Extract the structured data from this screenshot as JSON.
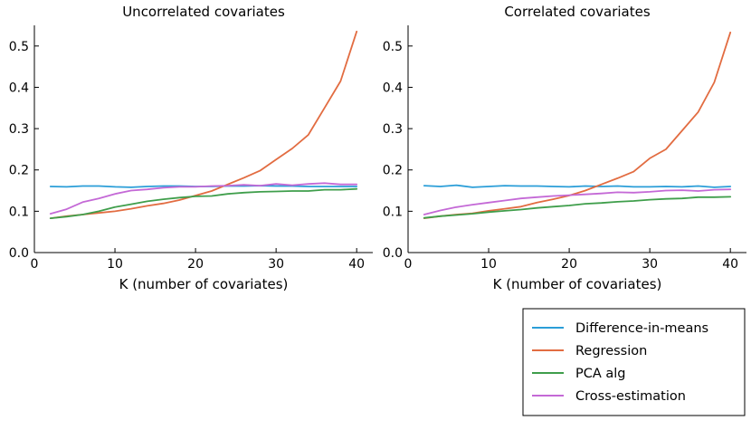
{
  "chart_data": [
    {
      "type": "line",
      "title": "Uncorrelated covariates",
      "xlabel": "K (number of covariates)",
      "ylabel": "",
      "xlim": [
        0,
        42
      ],
      "ylim": [
        0,
        0.55
      ],
      "xticks": [
        "0",
        "10",
        "20",
        "30",
        "40"
      ],
      "yticks": [
        "0.0",
        "0.1",
        "0.2",
        "0.3",
        "0.4",
        "0.5"
      ],
      "x": [
        2,
        4,
        6,
        8,
        10,
        12,
        14,
        16,
        18,
        20,
        22,
        24,
        26,
        28,
        30,
        32,
        34,
        36,
        38,
        40
      ],
      "series": [
        {
          "name": "Difference-in-means",
          "color": "#2b9ed8",
          "values": [
            0.16,
            0.159,
            0.161,
            0.161,
            0.159,
            0.158,
            0.16,
            0.161,
            0.161,
            0.16,
            0.16,
            0.161,
            0.161,
            0.162,
            0.161,
            0.161,
            0.16,
            0.16,
            0.16,
            0.16
          ]
        },
        {
          "name": "Regression",
          "color": "#e26c41",
          "values": [
            0.083,
            0.088,
            0.092,
            0.096,
            0.1,
            0.106,
            0.113,
            0.119,
            0.127,
            0.138,
            0.149,
            0.165,
            0.181,
            0.198,
            0.225,
            0.252,
            0.285,
            0.35,
            0.415,
            0.535
          ]
        },
        {
          "name": "PCA alg",
          "color": "#3f9e4b",
          "values": [
            0.083,
            0.087,
            0.092,
            0.1,
            0.11,
            0.117,
            0.124,
            0.129,
            0.133,
            0.136,
            0.137,
            0.142,
            0.145,
            0.147,
            0.148,
            0.149,
            0.149,
            0.152,
            0.152,
            0.154
          ]
        },
        {
          "name": "Cross-estimation",
          "color": "#c469d6",
          "values": [
            0.094,
            0.105,
            0.122,
            0.131,
            0.142,
            0.15,
            0.153,
            0.157,
            0.159,
            0.159,
            0.161,
            0.162,
            0.164,
            0.162,
            0.166,
            0.163,
            0.166,
            0.168,
            0.165,
            0.165
          ]
        }
      ]
    },
    {
      "type": "line",
      "title": "Correlated covariates",
      "xlabel": "K (number of covariates)",
      "ylabel": "",
      "xlim": [
        0,
        42
      ],
      "ylim": [
        0,
        0.55
      ],
      "xticks": [
        "0",
        "10",
        "20",
        "30",
        "40"
      ],
      "yticks": [
        "0.0",
        "0.1",
        "0.2",
        "0.3",
        "0.4",
        "0.5"
      ],
      "x": [
        2,
        4,
        6,
        8,
        10,
        12,
        14,
        16,
        18,
        20,
        22,
        24,
        26,
        28,
        30,
        32,
        34,
        36,
        38,
        40
      ],
      "series": [
        {
          "name": "Difference-in-means",
          "color": "#2b9ed8",
          "values": [
            0.162,
            0.16,
            0.163,
            0.158,
            0.16,
            0.162,
            0.161,
            0.161,
            0.16,
            0.159,
            0.161,
            0.16,
            0.161,
            0.159,
            0.159,
            0.16,
            0.159,
            0.161,
            0.158,
            0.16
          ]
        },
        {
          "name": "Regression",
          "color": "#e26c41",
          "values": [
            0.083,
            0.088,
            0.092,
            0.095,
            0.101,
            0.106,
            0.111,
            0.121,
            0.129,
            0.138,
            0.15,
            0.165,
            0.18,
            0.196,
            0.228,
            0.25,
            0.295,
            0.34,
            0.412,
            0.533
          ]
        },
        {
          "name": "PCA alg",
          "color": "#3f9e4b",
          "values": [
            0.084,
            0.088,
            0.091,
            0.094,
            0.098,
            0.101,
            0.104,
            0.108,
            0.111,
            0.114,
            0.118,
            0.12,
            0.123,
            0.125,
            0.128,
            0.13,
            0.131,
            0.134,
            0.134,
            0.135
          ]
        },
        {
          "name": "Cross-estimation",
          "color": "#c469d6",
          "values": [
            0.092,
            0.102,
            0.11,
            0.116,
            0.121,
            0.126,
            0.131,
            0.134,
            0.137,
            0.139,
            0.141,
            0.143,
            0.146,
            0.145,
            0.147,
            0.15,
            0.151,
            0.149,
            0.152,
            0.153
          ]
        }
      ]
    }
  ],
  "legend": {
    "entries": [
      "Difference-in-means",
      "Regression",
      "PCA alg",
      "Cross-estimation"
    ],
    "placement": "bottom-right"
  }
}
